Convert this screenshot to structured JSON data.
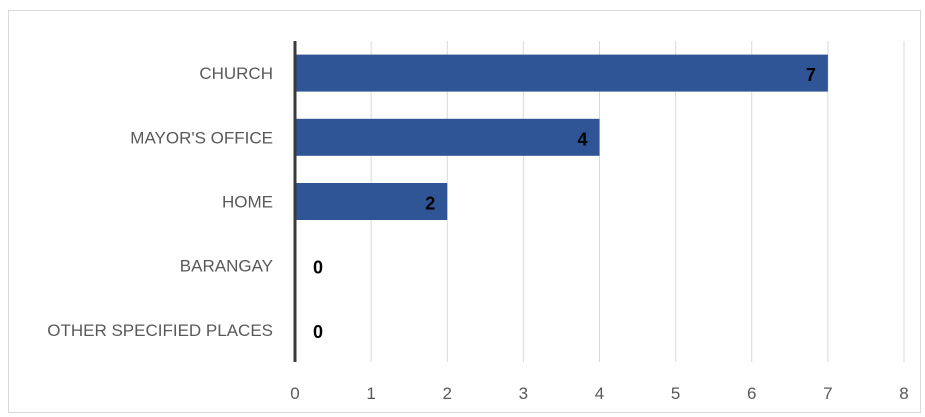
{
  "chart_data": {
    "type": "bar",
    "orientation": "horizontal",
    "categories": [
      "CHURCH",
      "MAYOR'S OFFICE",
      "HOME",
      "BARANGAY",
      "OTHER SPECIFIED PLACES"
    ],
    "values": [
      7,
      4,
      2,
      0,
      0
    ],
    "title": "",
    "xlabel": "",
    "ylabel": "",
    "xlim": [
      0,
      8
    ],
    "xticks": [
      0,
      1,
      2,
      3,
      4,
      5,
      6,
      7,
      8
    ],
    "grid": "vertical",
    "legend": "none",
    "bar_color": "#2f5597"
  }
}
